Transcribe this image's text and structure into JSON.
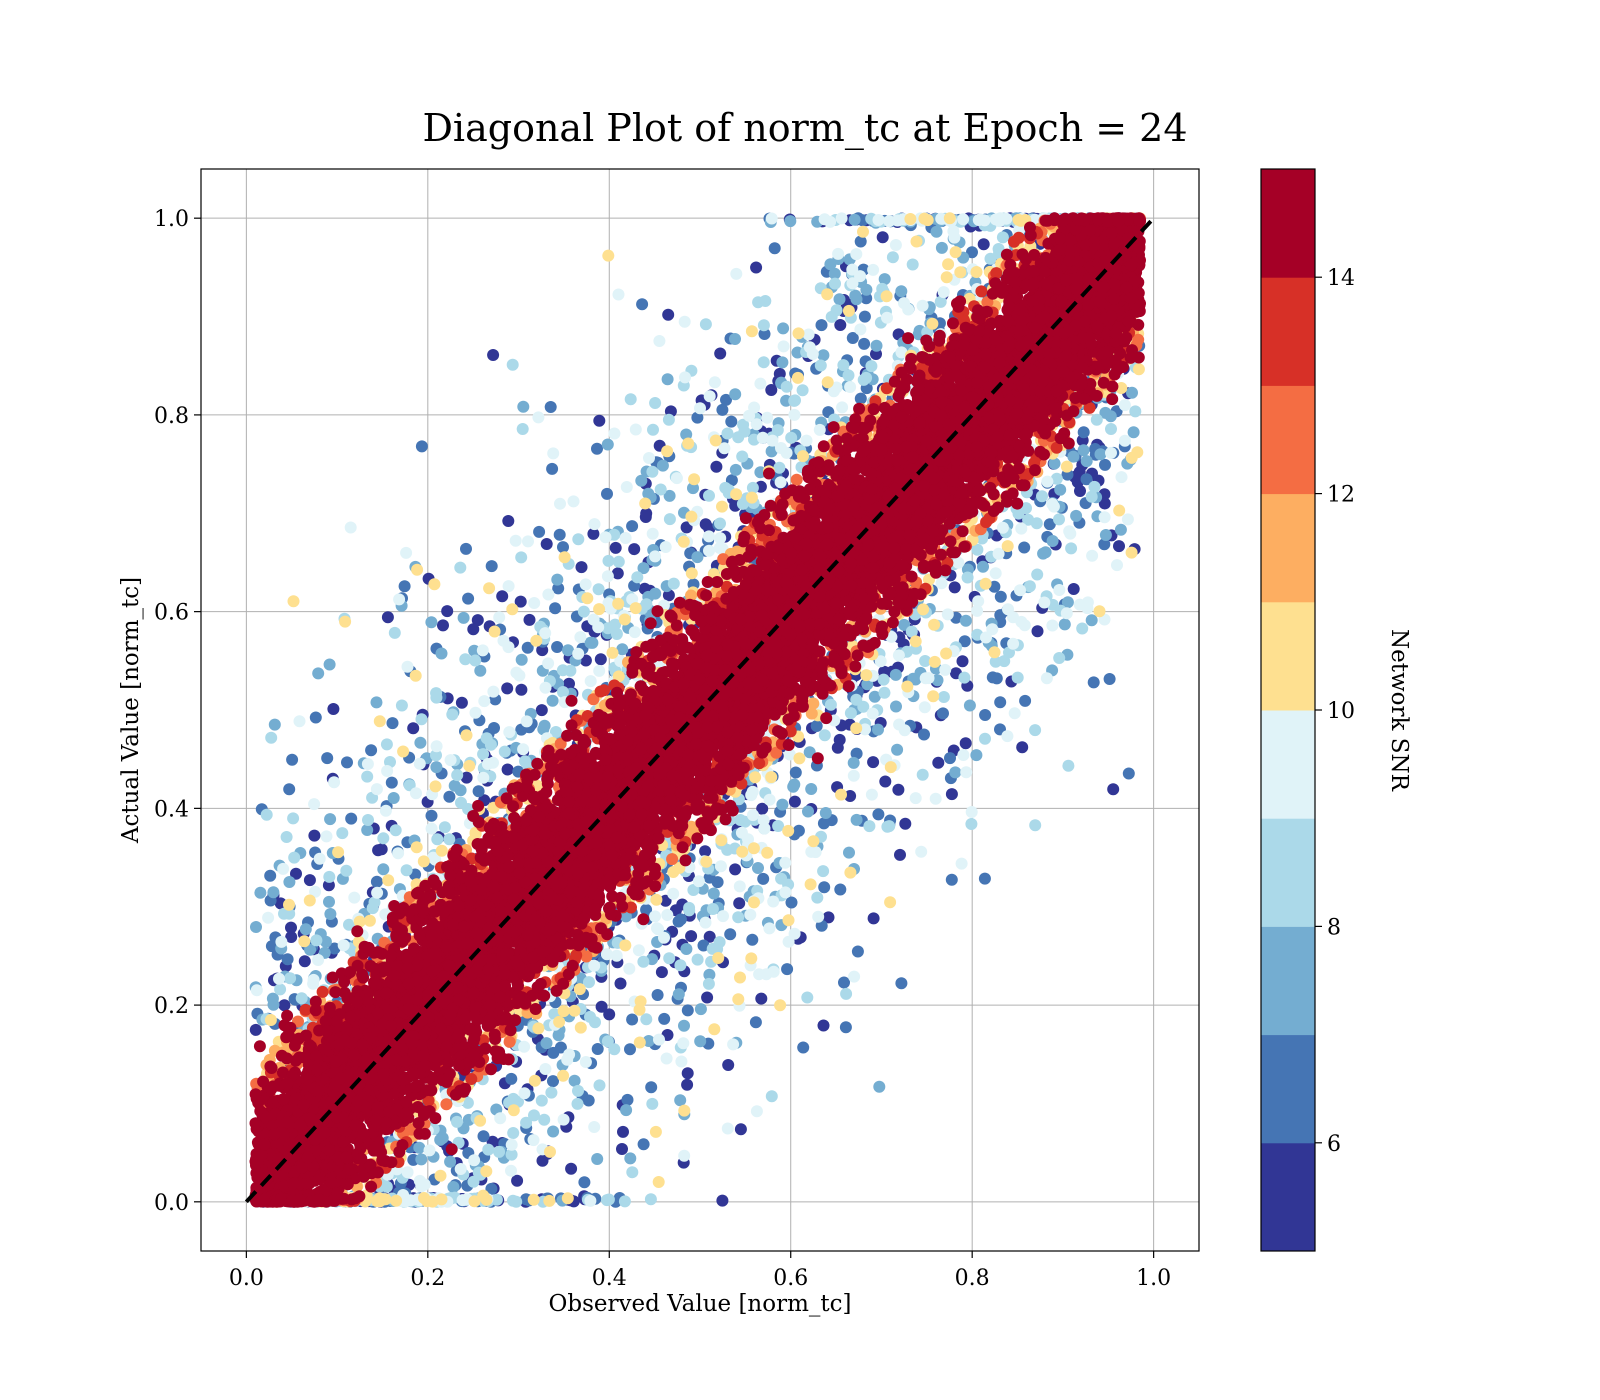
{
  "chart_data": {
    "type": "scatter",
    "title": "Diagonal Plot of norm_tc at Epoch = 24",
    "xlabel": "Observed Value [norm_tc]",
    "ylabel": "Actual Value [norm_tc]",
    "xlim": [
      -0.05,
      1.05
    ],
    "ylim": [
      -0.05,
      1.05
    ],
    "xticks": [
      "0.0",
      "0.2",
      "0.4",
      "0.6",
      "0.8",
      "1.0"
    ],
    "yticks": [
      "0.0",
      "0.2",
      "0.4",
      "0.6",
      "0.8",
      "1.0"
    ],
    "grid": true,
    "reference_line": {
      "x": [
        0,
        1
      ],
      "y": [
        0,
        1
      ],
      "style": "dashed",
      "color": "#000000"
    },
    "colorbar": {
      "label": "Network SNR",
      "range": [
        5,
        15
      ],
      "ticks": [
        "6",
        "8",
        "10",
        "12",
        "14"
      ],
      "colors": [
        "#313695",
        "#4575b4",
        "#74add1",
        "#abd9e9",
        "#e0f3f8",
        "#fee090",
        "#fdae61",
        "#f46d43",
        "#d73027",
        "#a50026"
      ]
    },
    "series_description_points": {
      "core_band_half_width": 0.06,
      "point_count_approx": 30000,
      "snr_high_color": "#a50026"
    }
  }
}
